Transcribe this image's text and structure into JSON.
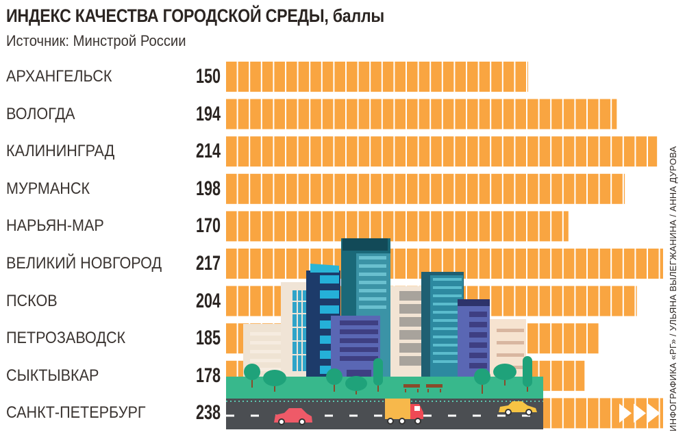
{
  "header": {
    "title": "ИНДЕКС КАЧЕСТВА ГОРОДСКОЙ СРЕДЫ, баллы",
    "subtitle": "Источник: Минстрой России"
  },
  "credit": "ИНФОГРАФИКА «РГ» / УЛЬЯНА ВЫЛЕГЖАНИНА / АННА ДУРОВА",
  "colors": {
    "bar": "#f9a541",
    "text": "#2b2522"
  },
  "chart_data": {
    "type": "bar",
    "orientation": "horizontal",
    "title": "ИНДЕКС КАЧЕСТВА ГОРОДСКОЙ СРЕДЫ, баллы",
    "categories": [
      "АРХАНГЕЛЬСК",
      "ВОЛОГДА",
      "КАЛИНИНГРАД",
      "МУРМАНСК",
      "НАРЬЯН-МАР",
      "ВЕЛИКИЙ НОВГОРОД",
      "ПСКОВ",
      "ПЕТРОЗАВОДСК",
      "СЫКТЫВКАР",
      "САНКТ-ПЕТЕРБУРГ"
    ],
    "values": [
      150,
      194,
      214,
      198,
      170,
      217,
      204,
      185,
      178,
      238
    ],
    "value_labels": [
      "150",
      "194",
      "214",
      "198",
      "170",
      "217",
      "204",
      "185",
      "178",
      "238"
    ],
    "xlabel": "",
    "ylabel": "",
    "grid": false,
    "truncated_bar_indicator": "triple-arrow"
  }
}
